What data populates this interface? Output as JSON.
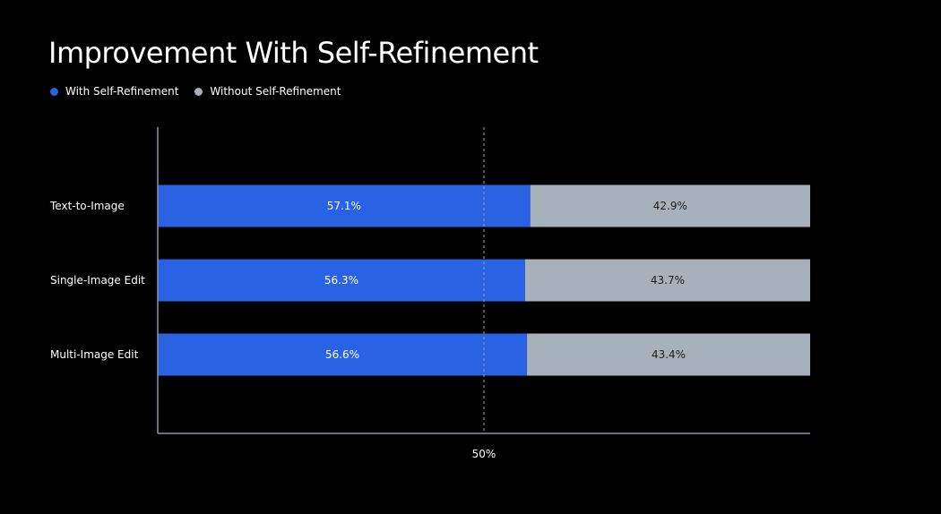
{
  "colors": {
    "background": "#000000",
    "with": "#2962e3",
    "without": "#a7b1bb",
    "axis": "#8a93a3",
    "reference_line": "#9aa1ab",
    "text": "#ffffff",
    "dark_text": "#1c1c1c"
  },
  "chart_data": {
    "type": "bar",
    "orientation": "horizontal",
    "stacked": true,
    "title": "Improvement With Self-Refinement",
    "categories": [
      "Text-to-Image",
      "Single-Image Edit",
      "Multi-Image Edit"
    ],
    "series": [
      {
        "name": "With Self-Refinement",
        "values": [
          57.1,
          56.3,
          56.6
        ],
        "labels": [
          "57.1%",
          "56.3%",
          "56.6%"
        ]
      },
      {
        "name": "Without Self-Refinement",
        "values": [
          42.9,
          43.7,
          43.4
        ],
        "labels": [
          "42.9%",
          "43.7%",
          "43.4%"
        ]
      }
    ],
    "xlim": [
      0,
      100
    ],
    "reference_line": {
      "value": 50,
      "label": "50%"
    },
    "legend": "top-left",
    "grid": false
  }
}
